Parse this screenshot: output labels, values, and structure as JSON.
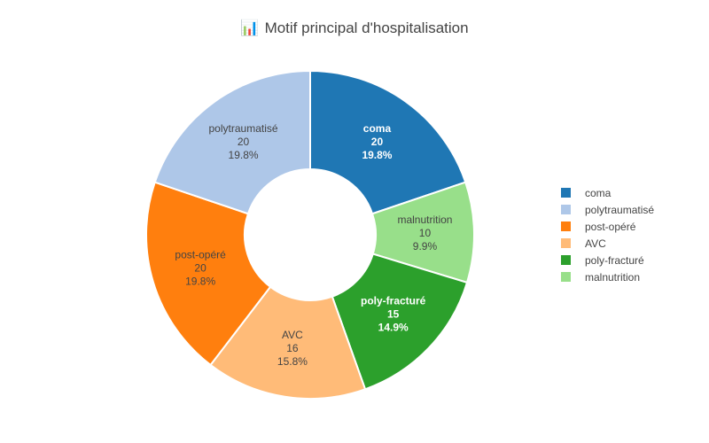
{
  "title": {
    "icon": "bar-chart-icon",
    "icon_glyph": "📊",
    "text": "Motif principal d'hospitalisation"
  },
  "chart_data": {
    "type": "pie",
    "hole": 0.4,
    "title": "Motif principal d'hospitalisation",
    "legend_position": "right",
    "slices": [
      {
        "label": "coma",
        "value": 20,
        "percent": "19.8%",
        "color": "#1f77b4",
        "label_color": "#ffffff",
        "bold": true
      },
      {
        "label": "malnutrition",
        "value": 10,
        "percent": "9.9%",
        "color": "#98df8a",
        "label_color": "#444444",
        "bold": false
      },
      {
        "label": "poly-fracturé",
        "value": 15,
        "percent": "14.9%",
        "color": "#2ca02c",
        "label_color": "#ffffff",
        "bold": true
      },
      {
        "label": "AVC",
        "value": 16,
        "percent": "15.8%",
        "color": "#ffbb78",
        "label_color": "#444444",
        "bold": false
      },
      {
        "label": "post-opéré",
        "value": 20,
        "percent": "19.8%",
        "color": "#ff7f0e",
        "label_color": "#444444",
        "bold": false
      },
      {
        "label": "polytraumatisé",
        "value": 20,
        "percent": "19.8%",
        "color": "#aec7e8",
        "label_color": "#444444",
        "bold": false
      }
    ],
    "legend": [
      {
        "label": "coma",
        "color": "#1f77b4"
      },
      {
        "label": "polytraumatisé",
        "color": "#aec7e8"
      },
      {
        "label": "post-opéré",
        "color": "#ff7f0e"
      },
      {
        "label": "AVC",
        "color": "#ffbb78"
      },
      {
        "label": "poly-fracturé",
        "color": "#2ca02c"
      },
      {
        "label": "malnutrition",
        "color": "#98df8a"
      }
    ]
  }
}
